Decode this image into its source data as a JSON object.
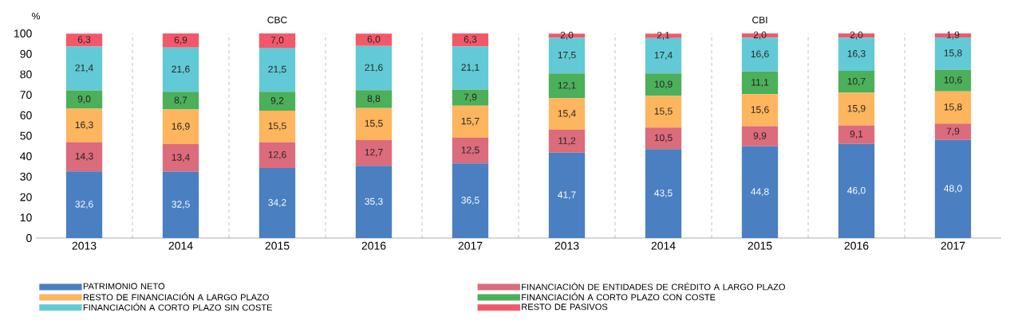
{
  "chart_data": {
    "type": "bar",
    "stacked": true,
    "ylabel": "%",
    "ylim": [
      0,
      100
    ],
    "yticks": [
      0,
      10,
      20,
      30,
      40,
      50,
      60,
      70,
      80,
      90,
      100
    ],
    "grid": "x",
    "legend": "bottom",
    "annotations": [
      "CBC",
      "CBI"
    ],
    "categories": [
      "2013",
      "2014",
      "2015",
      "2016",
      "2017",
      "2013",
      "2014",
      "2015",
      "2016",
      "2017"
    ],
    "series": [
      {
        "name": "PATRIMONIO NETO",
        "color": "#4a7fc1",
        "values": [
          32.6,
          32.5,
          34.2,
          35.3,
          36.5,
          41.7,
          43.5,
          44.8,
          46.0,
          48.0
        ],
        "value_labels": [
          "32,6",
          "32,5",
          "34,2",
          "35,3",
          "36,5",
          "41,7",
          "43,5",
          "44,8",
          "46,0",
          "48,0"
        ]
      },
      {
        "name": "FINANCIACIÓN DE ENTIDADES DE CRÉDITO A LARGO PLAZO",
        "color": "#dc6b7b",
        "values": [
          14.3,
          13.4,
          12.6,
          12.7,
          12.5,
          11.2,
          10.5,
          9.9,
          9.1,
          7.9
        ],
        "value_labels": [
          "14,3",
          "13,4",
          "12,6",
          "12,7",
          "12,5",
          "11,2",
          "10,5",
          "9,9",
          "9,1",
          "7,9"
        ]
      },
      {
        "name": "RESTO DE FINANCIACIÓN A LARGO PLAZO",
        "color": "#fdb55e",
        "values": [
          16.3,
          16.9,
          15.5,
          15.5,
          15.7,
          15.4,
          15.5,
          15.6,
          15.9,
          15.8
        ],
        "value_labels": [
          "16,3",
          "16,9",
          "15,5",
          "15,5",
          "15,7",
          "15,4",
          "15,5",
          "15,6",
          "15,9",
          "15,8"
        ]
      },
      {
        "name": "FINANCIACIÓN A CORTO PLAZO CON COSTE",
        "color": "#4caf5a",
        "values": [
          9.0,
          8.7,
          9.2,
          8.8,
          7.9,
          12.1,
          10.9,
          11.1,
          10.7,
          10.6
        ],
        "value_labels": [
          "9,0",
          "8,7",
          "9,2",
          "8,8",
          "7,9",
          "12,1",
          "10,9",
          "11,1",
          "10,7",
          "10,6"
        ]
      },
      {
        "name": "FINANCIACIÓN A CORTO PLAZO SIN COSTE",
        "color": "#62cad6",
        "values": [
          21.4,
          21.6,
          21.5,
          21.6,
          21.1,
          17.5,
          17.4,
          16.6,
          16.3,
          15.8
        ],
        "value_labels": [
          "21,4",
          "21,6",
          "21,5",
          "21,6",
          "21,1",
          "17,5",
          "17,4",
          "16,6",
          "16,3",
          "15,8"
        ]
      },
      {
        "name": "RESTO DE PASIVOS",
        "color": "#f3586a",
        "values": [
          6.3,
          6.9,
          7.0,
          6.0,
          6.3,
          2.0,
          2.1,
          2.0,
          2.0,
          1.9
        ],
        "value_labels": [
          "6,3",
          "6,9",
          "7,0",
          "6,0",
          "6,3",
          "2,0",
          "2,1",
          "2,0",
          "2,0",
          "1,9"
        ]
      }
    ]
  }
}
